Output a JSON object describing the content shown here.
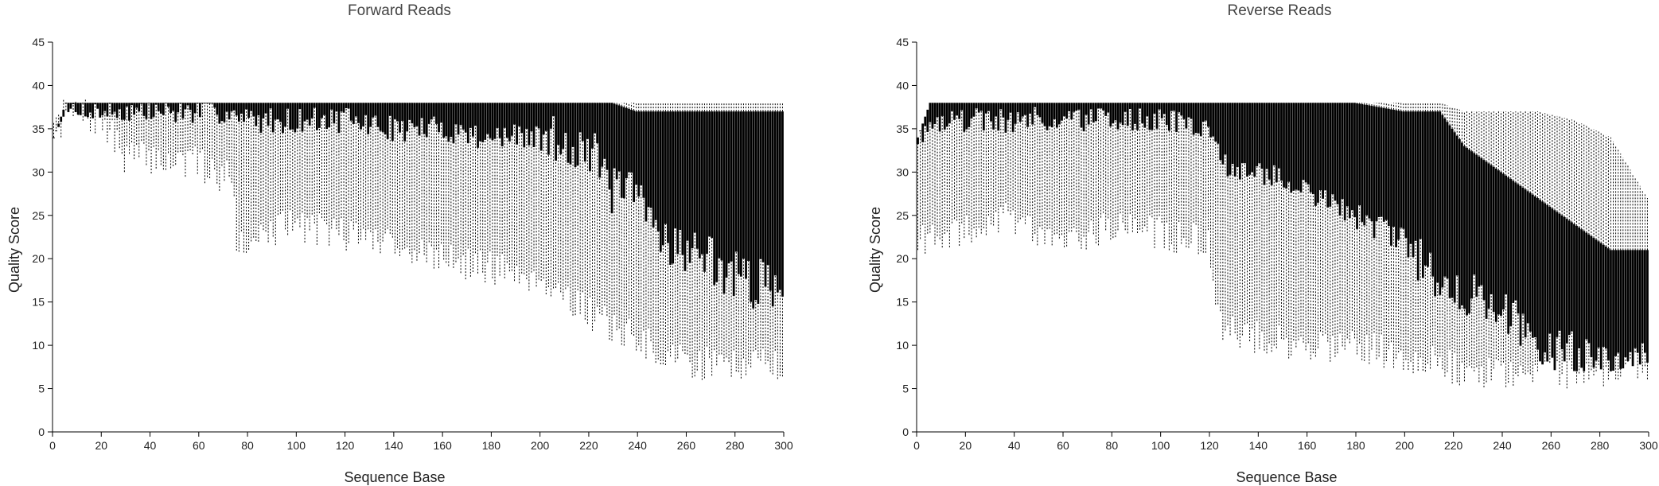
{
  "chart_data": [
    {
      "type": "box",
      "title": "Forward Reads",
      "xlabel": "Sequence Base",
      "ylabel": "Quality Score",
      "xlim": [
        0,
        300
      ],
      "ylim": [
        0,
        45
      ],
      "xticks": [
        0,
        20,
        40,
        60,
        80,
        100,
        120,
        140,
        160,
        180,
        200,
        220,
        240,
        260,
        280,
        300
      ],
      "yticks": [
        0,
        5,
        10,
        15,
        20,
        25,
        30,
        35,
        40,
        45
      ],
      "colors": {
        "box": "#000000",
        "whisker": "#000000",
        "axis": "#000000"
      },
      "profile": [
        {
          "x": 1,
          "q1": 34,
          "whisker_low": 34,
          "whisker_high": 34,
          "q3": 34
        },
        {
          "x": 6,
          "q1": 37,
          "whisker_low": 37,
          "whisker_high": 38,
          "q3": 38
        },
        {
          "x": 20,
          "q1": 37,
          "whisker_low": 36,
          "whisker_high": 38,
          "q3": 38
        },
        {
          "x": 30,
          "q1": 37,
          "whisker_low": 32,
          "whisker_high": 38,
          "q3": 38
        },
        {
          "x": 60,
          "q1": 37,
          "whisker_low": 31,
          "whisker_high": 38,
          "q3": 38
        },
        {
          "x": 75,
          "q1": 37,
          "whisker_low": 29,
          "whisker_high": 38,
          "q3": 38
        },
        {
          "x": 76,
          "q1": 36,
          "whisker_low": 22,
          "whisker_high": 38,
          "q3": 38
        },
        {
          "x": 100,
          "q1": 36,
          "whisker_low": 24,
          "whisker_high": 38,
          "q3": 38
        },
        {
          "x": 120,
          "q1": 36,
          "whisker_low": 23,
          "whisker_high": 38,
          "q3": 38
        },
        {
          "x": 140,
          "q1": 35,
          "whisker_low": 22,
          "whisker_high": 38,
          "q3": 38
        },
        {
          "x": 160,
          "q1": 35,
          "whisker_low": 20,
          "whisker_high": 38,
          "q3": 38
        },
        {
          "x": 180,
          "q1": 34,
          "whisker_low": 19,
          "whisker_high": 38,
          "q3": 38
        },
        {
          "x": 200,
          "q1": 34,
          "whisker_low": 18,
          "whisker_high": 38,
          "q3": 38
        },
        {
          "x": 220,
          "q1": 33,
          "whisker_low": 14,
          "whisker_high": 38,
          "q3": 38
        },
        {
          "x": 230,
          "q1": 28,
          "whisker_low": 12,
          "whisker_high": 38,
          "q3": 38
        },
        {
          "x": 240,
          "q1": 27,
          "whisker_low": 11,
          "whisker_high": 38,
          "q3": 37
        },
        {
          "x": 250,
          "q1": 23,
          "whisker_low": 9,
          "whisker_high": 38,
          "q3": 37
        },
        {
          "x": 260,
          "q1": 21,
          "whisker_low": 8,
          "whisker_high": 38,
          "q3": 37
        },
        {
          "x": 270,
          "q1": 20,
          "whisker_low": 8,
          "whisker_high": 38,
          "q3": 37
        },
        {
          "x": 280,
          "q1": 18,
          "whisker_low": 8,
          "whisker_high": 38,
          "q3": 37
        },
        {
          "x": 290,
          "q1": 17,
          "whisker_low": 8,
          "whisker_high": 38,
          "q3": 37
        },
        {
          "x": 300,
          "q1": 17,
          "whisker_low": 8,
          "whisker_high": 38,
          "q3": 37
        }
      ]
    },
    {
      "type": "box",
      "title": "Reverse Reads",
      "xlabel": "Sequence Base",
      "ylabel": "Quality Score",
      "xlim": [
        0,
        300
      ],
      "ylim": [
        0,
        45
      ],
      "xticks": [
        0,
        20,
        40,
        60,
        80,
        100,
        120,
        140,
        160,
        180,
        200,
        220,
        240,
        260,
        280,
        300
      ],
      "yticks": [
        0,
        5,
        10,
        15,
        20,
        25,
        30,
        35,
        40,
        45
      ],
      "colors": {
        "box": "#000000",
        "whisker": "#000000",
        "axis": "#000000"
      },
      "profile": [
        {
          "x": 1,
          "q1": 34,
          "whisker_low": 23,
          "whisker_high": 34,
          "q3": 34
        },
        {
          "x": 6,
          "q1": 36,
          "whisker_low": 22,
          "whisker_high": 38,
          "q3": 38
        },
        {
          "x": 20,
          "q1": 36,
          "whisker_low": 23,
          "whisker_high": 38,
          "q3": 38
        },
        {
          "x": 40,
          "q1": 36,
          "whisker_low": 25,
          "whisker_high": 38,
          "q3": 38
        },
        {
          "x": 60,
          "q1": 36,
          "whisker_low": 22,
          "whisker_high": 38,
          "q3": 38
        },
        {
          "x": 80,
          "q1": 36,
          "whisker_low": 24,
          "whisker_high": 38,
          "q3": 38
        },
        {
          "x": 100,
          "q1": 36,
          "whisker_low": 23,
          "whisker_high": 38,
          "q3": 38
        },
        {
          "x": 120,
          "q1": 35,
          "whisker_low": 22,
          "whisker_high": 38,
          "q3": 38
        },
        {
          "x": 125,
          "q1": 31,
          "whisker_low": 12,
          "whisker_high": 38,
          "q3": 38
        },
        {
          "x": 140,
          "q1": 30,
          "whisker_low": 11,
          "whisker_high": 38,
          "q3": 38
        },
        {
          "x": 160,
          "q1": 28,
          "whisker_low": 10,
          "whisker_high": 38,
          "q3": 38
        },
        {
          "x": 180,
          "q1": 25,
          "whisker_low": 10,
          "whisker_high": 38,
          "q3": 38
        },
        {
          "x": 200,
          "q1": 22,
          "whisker_low": 9,
          "whisker_high": 38,
          "q3": 37
        },
        {
          "x": 215,
          "q1": 18,
          "whisker_low": 8,
          "whisker_high": 38,
          "q3": 37
        },
        {
          "x": 225,
          "q1": 16,
          "whisker_low": 7,
          "whisker_high": 37,
          "q3": 33
        },
        {
          "x": 240,
          "q1": 14,
          "whisker_low": 7,
          "whisker_high": 37,
          "q3": 30
        },
        {
          "x": 255,
          "q1": 11,
          "whisker_low": 7,
          "whisker_high": 37,
          "q3": 27
        },
        {
          "x": 270,
          "q1": 9,
          "whisker_low": 7,
          "whisker_high": 36,
          "q3": 24
        },
        {
          "x": 285,
          "q1": 8,
          "whisker_low": 7,
          "whisker_high": 34,
          "q3": 21
        },
        {
          "x": 300,
          "q1": 8,
          "whisker_low": 8,
          "whisker_high": 27,
          "q3": 21
        }
      ]
    }
  ]
}
